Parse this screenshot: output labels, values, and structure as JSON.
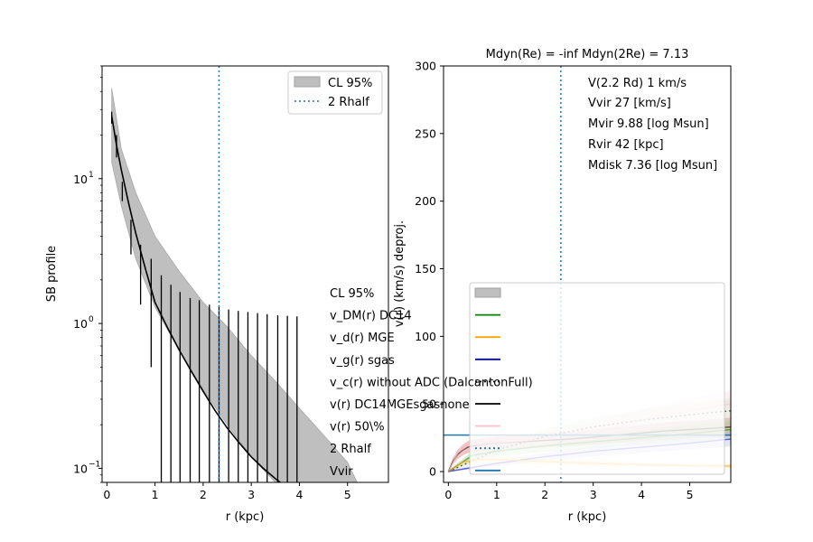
{
  "chart_data": [
    {
      "type": "line",
      "xlabel": "r (kpc)",
      "ylabel": "SB profile",
      "xlim": [
        -0.1,
        5.85
      ],
      "ylim": [
        0.08,
        60
      ],
      "yscale": "log",
      "xticks": [
        0,
        1,
        2,
        3,
        4,
        5
      ],
      "yticks": [
        0.1,
        1,
        10
      ],
      "ytick_labels": [
        "10",
        "10",
        "10"
      ],
      "ytick_exponents": [
        "−1",
        "0",
        "1"
      ],
      "vline": {
        "name": "2 Rhalf",
        "x": 2.33
      },
      "legend": {
        "position": "top-right",
        "entries": [
          "CL 95%",
          "2 Rhalf"
        ]
      },
      "series": [
        {
          "name": "model",
          "x": [
            0.1,
            0.2,
            0.3,
            0.45,
            0.6,
            0.8,
            1.0,
            1.25,
            1.5,
            1.75,
            2.0,
            2.25,
            2.5,
            2.75,
            3.0,
            3.25,
            3.5,
            3.6
          ],
          "y": [
            27,
            17,
            11.5,
            6.8,
            4.2,
            2.4,
            1.4,
            0.95,
            0.66,
            0.47,
            0.34,
            0.25,
            0.19,
            0.15,
            0.12,
            0.1,
            0.085,
            0.08
          ]
        }
      ],
      "band": {
        "name": "CL 95%",
        "x": [
          0.1,
          0.3,
          0.6,
          1.0,
          1.5,
          2.0,
          2.5,
          3.0,
          3.5,
          4.0,
          4.5,
          5.0,
          5.2
        ],
        "upper": [
          42,
          16,
          8,
          4,
          2.3,
          1.4,
          0.95,
          0.6,
          0.4,
          0.26,
          0.17,
          0.11,
          0.08
        ],
        "lower": [
          13,
          6.5,
          2.8,
          1.3,
          0.65,
          0.35,
          0.2,
          0.12,
          0.08,
          0.08,
          0.08,
          0.08,
          0.08
        ]
      },
      "errorbars": [
        {
          "x": 0.1,
          "low": 24,
          "high": 29
        },
        {
          "x": 0.2,
          "low": 14,
          "high": 20
        },
        {
          "x": 0.32,
          "low": 7,
          "high": 9.5
        },
        {
          "x": 0.5,
          "low": 3.0,
          "high": 5.2
        },
        {
          "x": 0.7,
          "low": 1.35,
          "high": 3.5
        },
        {
          "x": 0.92,
          "low": 0.5,
          "high": 2.8
        },
        {
          "x": 1.13,
          "low": 0.08,
          "high": 2.15
        },
        {
          "x": 1.33,
          "low": 0.08,
          "high": 1.85
        },
        {
          "x": 1.52,
          "low": 0.08,
          "high": 1.65
        },
        {
          "x": 1.73,
          "low": 0.08,
          "high": 1.5
        },
        {
          "x": 1.92,
          "low": 0.08,
          "high": 1.45
        },
        {
          "x": 2.13,
          "low": 0.08,
          "high": 1.35
        },
        {
          "x": 2.33,
          "low": 0.08,
          "high": 1.3
        },
        {
          "x": 2.53,
          "low": 0.08,
          "high": 1.25
        },
        {
          "x": 2.73,
          "low": 0.08,
          "high": 1.22
        },
        {
          "x": 2.93,
          "low": 0.08,
          "high": 1.2
        },
        {
          "x": 3.13,
          "low": 0.08,
          "high": 1.18
        },
        {
          "x": 3.33,
          "low": 0.08,
          "high": 1.16
        },
        {
          "x": 3.55,
          "low": 0.08,
          "high": 1.14
        },
        {
          "x": 3.75,
          "low": 0.08,
          "high": 1.13
        },
        {
          "x": 3.95,
          "low": 0.08,
          "high": 1.12
        }
      ]
    },
    {
      "type": "line",
      "title": "Mdyn(Re) = -inf  Mdyn(2Re) = 7.13",
      "xlabel": "r (kpc)",
      "ylabel": "v(r) (km/s) deproj.",
      "xlim": [
        -0.1,
        5.85
      ],
      "ylim": [
        -8,
        300
      ],
      "xticks": [
        0,
        1,
        2,
        3,
        4,
        5
      ],
      "yticks": [
        0,
        50,
        100,
        150,
        200,
        250,
        300
      ],
      "vline": {
        "name": "2 Rhalf",
        "x": 2.33
      },
      "hline": {
        "name": "Vvir",
        "y": 27
      },
      "annotations": [
        "V(2.2 Rd) 1 km/s",
        "Vvir 27 [km/s]",
        "Mvir 9.88 [log Msun]",
        "Rvir 42 [kpc]",
        "Mdisk 7.36 [log Msun]"
      ],
      "legend": {
        "position": "lower-right",
        "entries": [
          {
            "label": "CL 95%",
            "color": "#bfbfbf"
          },
          {
            "label": "v_DM(r) DC14",
            "color": "#008000"
          },
          {
            "label": "v_d(r) MGE",
            "color": "#ffa500"
          },
          {
            "label": "v_g(r) sgas",
            "color": "#0000bf"
          },
          {
            "label": "v_c(r) without ADC (DalcantonFull)",
            "color": "#000000"
          },
          {
            "label": "v(r) DC14MGEsgasnone",
            "color": "#000000"
          },
          {
            "label": "v(r) 50\\%",
            "color": "#ffc0cb"
          },
          {
            "label": "2 Rhalf",
            "color": "#1f77b4"
          },
          {
            "label": "Vvir",
            "color": "#1f77b4"
          }
        ]
      },
      "series": [
        {
          "name": "v(r) DC14MGEsgasnone",
          "x": [
            0,
            0.1,
            0.2,
            0.3,
            0.4,
            0.5,
            0.7,
            1.0,
            1.5,
            2.0,
            2.5,
            3.0,
            3.5,
            4.0,
            4.5,
            5.0,
            5.5,
            5.85
          ],
          "y": [
            0,
            8,
            13,
            16,
            18,
            19,
            20,
            21,
            22,
            23,
            24,
            25.5,
            27,
            28.5,
            30,
            31,
            32,
            33
          ]
        },
        {
          "name": "v_DM(r) DC14",
          "x": [
            0,
            0.5,
            1.0,
            2.0,
            3.0,
            4.0,
            5.0,
            5.85
          ],
          "y": [
            0,
            12,
            15,
            19,
            22,
            25,
            28,
            31
          ]
        },
        {
          "name": "v_c(r) without ADC (DalcantonFull)",
          "x": [
            0,
            0.5,
            1.0,
            2.0,
            3.0,
            4.0,
            5.0,
            5.85
          ],
          "y": [
            0,
            8,
            16,
            26,
            33,
            38,
            42,
            45
          ]
        },
        {
          "name": "v(r) 50\\%",
          "x": [
            0,
            0.2,
            0.4,
            0.6,
            1.0,
            2.0,
            3.0,
            4.0,
            5.0,
            5.85
          ],
          "y": [
            0,
            14,
            19,
            20,
            21,
            24,
            30,
            38,
            45,
            50
          ]
        },
        {
          "name": "v_g(r) sgas",
          "x": [
            0,
            0.5,
            1.0,
            2.0,
            3.0,
            4.0,
            5.0,
            5.85
          ],
          "y": [
            0,
            3,
            6,
            11,
            15,
            18,
            21,
            24
          ]
        },
        {
          "name": "v_d(r) MGE",
          "x": [
            0,
            0.3,
            0.6,
            1.0,
            2.0,
            3.0,
            4.0,
            5.0,
            5.85
          ],
          "y": [
            0,
            7,
            9,
            9,
            7.5,
            6,
            5,
            4.5,
            4
          ]
        }
      ]
    }
  ]
}
